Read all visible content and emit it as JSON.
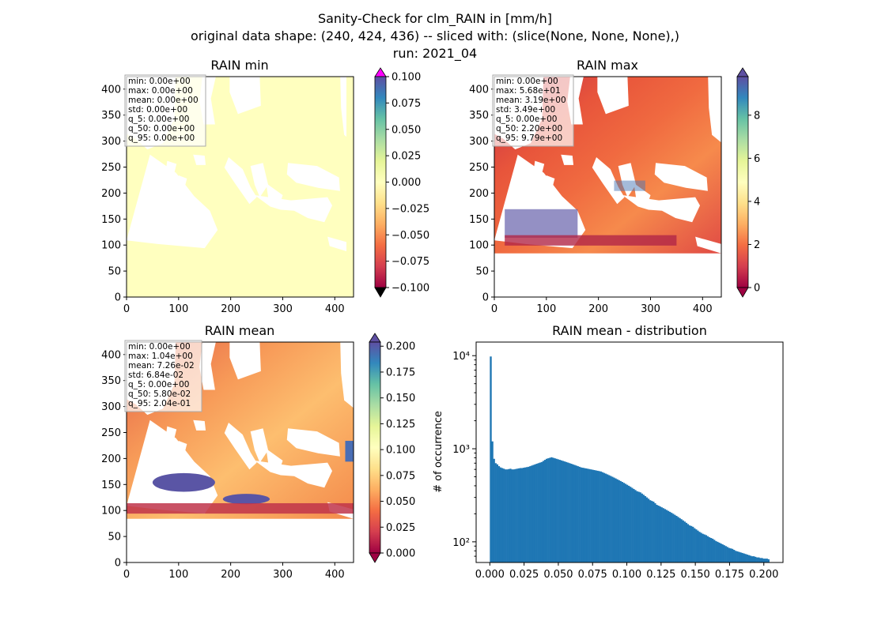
{
  "figure": {
    "suptitle_lines": [
      "Sanity-Check for clm_RAIN in [mm/h]",
      "original data shape: (240, 424, 436) -- sliced with: (slice(None, None, None),)",
      "run: 2021_04"
    ]
  },
  "chart_data": [
    {
      "type": "heatmap",
      "title": "RAIN min",
      "xlim": [
        0,
        436
      ],
      "ylim": [
        0,
        424
      ],
      "x_ticks": [
        0,
        100,
        200,
        300,
        400
      ],
      "y_ticks": [
        0,
        50,
        100,
        150,
        200,
        250,
        300,
        350,
        400
      ],
      "colormap": "Spectral",
      "colorbar": {
        "range": [
          -0.1,
          0.1
        ],
        "ticks": [
          "0.100",
          "0.075",
          "0.050",
          "0.025",
          "0.000",
          "−0.025",
          "−0.050",
          "−0.075",
          "−0.100"
        ],
        "extend_top_color": "#ff00ff",
        "extend_bottom_color": "#000000"
      },
      "stats": [
        "min: 0.00e+00",
        "max: 0.00e+00",
        "mean: 0.00e+00",
        "std: 0.00e+00",
        "q_5: 0.00e+00",
        "q_50: 0.00e+00",
        "q_95: 0.00e+00"
      ]
    },
    {
      "type": "heatmap",
      "title": "RAIN max",
      "xlim": [
        0,
        436
      ],
      "ylim": [
        0,
        424
      ],
      "x_ticks": [
        0,
        100,
        200,
        300,
        400
      ],
      "y_ticks": [
        0,
        50,
        100,
        150,
        200,
        250,
        300,
        350,
        400
      ],
      "colormap": "Spectral",
      "colorbar": {
        "range": [
          0,
          9.79
        ],
        "ticks": [
          "8",
          "6",
          "4",
          "2",
          "0"
        ]
      },
      "stats": [
        "min: 0.00e+00",
        "max: 5.68e+01",
        "mean: 3.19e+00",
        "std: 3.49e+00",
        "q_5: 0.00e+00",
        "q_50: 2.20e+00",
        "q_95: 9.79e+00"
      ]
    },
    {
      "type": "heatmap",
      "title": "RAIN mean",
      "xlim": [
        0,
        436
      ],
      "ylim": [
        0,
        424
      ],
      "x_ticks": [
        0,
        100,
        200,
        300,
        400
      ],
      "y_ticks": [
        0,
        50,
        100,
        150,
        200,
        250,
        300,
        350,
        400
      ],
      "colormap": "Spectral",
      "colorbar": {
        "range": [
          0,
          0.204
        ],
        "ticks": [
          "0.200",
          "0.175",
          "0.150",
          "0.125",
          "0.100",
          "0.075",
          "0.050",
          "0.025",
          "0.000"
        ]
      },
      "stats": [
        "min: 0.00e+00",
        "max: 1.04e+00",
        "mean: 7.26e-02",
        "std: 6.84e-02",
        "q_5: 0.00e+00",
        "q_50: 5.80e-02",
        "q_95: 2.04e-01"
      ]
    },
    {
      "type": "bar",
      "title": "RAIN mean - distribution",
      "ylabel": "# of occurrence",
      "y_scale": "log",
      "xlim": [
        -0.01,
        0.214
      ],
      "ylim": [
        60,
        14000
      ],
      "x_ticks": [
        0.0,
        0.025,
        0.05,
        0.075,
        0.1,
        0.125,
        0.15,
        0.175,
        0.2
      ],
      "x_tick_labels": [
        "0.000",
        "0.025",
        "0.050",
        "0.075",
        "0.100",
        "0.125",
        "0.150",
        "0.175",
        "0.200"
      ],
      "y_ticks": [
        100,
        1000,
        10000
      ],
      "y_tick_labels": [
        "10²",
        "10³",
        "10⁴"
      ],
      "bar_color": "#1f77b4",
      "bins_start": 0.0,
      "bins_end": 0.204,
      "values": [
        9800,
        1200,
        780,
        700,
        680,
        650,
        630,
        620,
        610,
        600,
        600,
        605,
        610,
        600,
        600,
        605,
        610,
        615,
        620,
        620,
        625,
        630,
        635,
        640,
        650,
        660,
        670,
        680,
        690,
        700,
        710,
        720,
        740,
        760,
        780,
        790,
        800,
        810,
        800,
        790,
        780,
        770,
        760,
        750,
        740,
        730,
        720,
        710,
        700,
        690,
        680,
        670,
        660,
        650,
        640,
        630,
        625,
        620,
        615,
        610,
        605,
        600,
        595,
        590,
        585,
        580,
        575,
        570,
        560,
        550,
        540,
        530,
        520,
        510,
        500,
        490,
        480,
        470,
        460,
        450,
        440,
        430,
        420,
        410,
        400,
        390,
        380,
        370,
        360,
        350,
        345,
        340,
        330,
        320,
        310,
        300,
        290,
        280,
        275,
        270,
        260,
        250,
        245,
        240,
        235,
        230,
        225,
        220,
        215,
        210,
        205,
        200,
        195,
        190,
        185,
        180,
        175,
        170,
        165,
        160,
        155,
        150,
        148,
        145,
        140,
        136,
        132,
        128,
        125,
        122,
        120,
        118,
        115,
        112,
        110,
        108,
        105,
        102,
        100,
        98,
        96,
        94,
        92,
        90,
        88,
        86,
        85,
        84,
        82,
        80,
        79,
        78,
        77,
        76,
        75,
        74,
        73,
        72,
        71,
        70,
        70,
        69,
        68,
        68,
        67,
        67,
        66,
        66,
        66,
        65
      ]
    }
  ]
}
